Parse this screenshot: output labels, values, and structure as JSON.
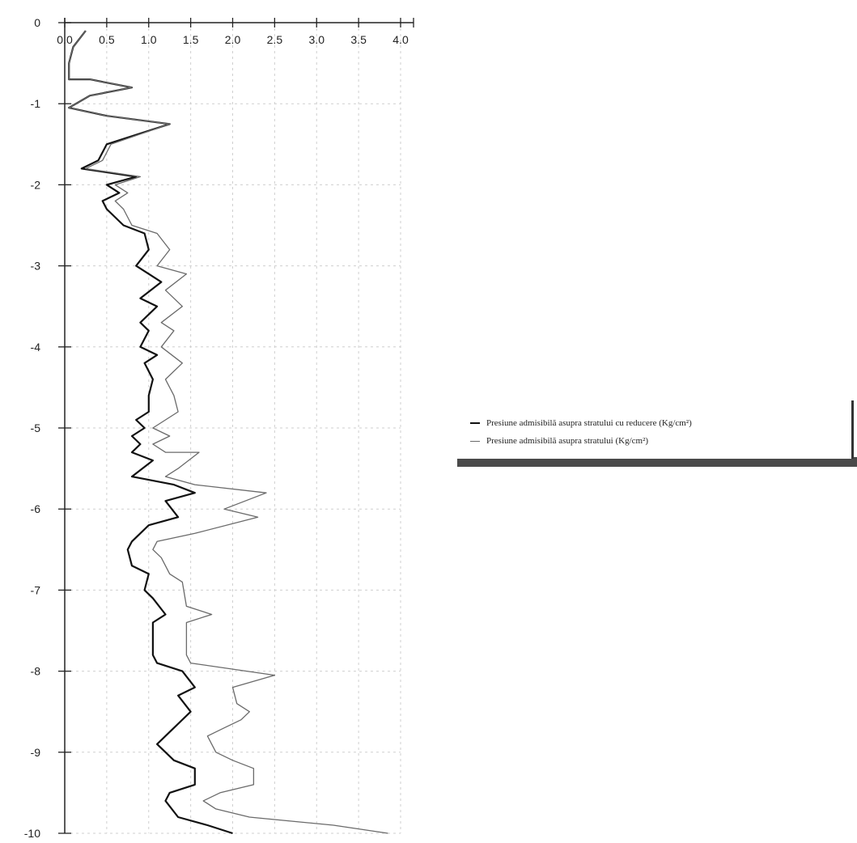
{
  "chart_data": {
    "type": "line",
    "title": "",
    "xlabel": "",
    "ylabel": "",
    "xlim": [
      0,
      4.0
    ],
    "ylim": [
      -10,
      0
    ],
    "x_ticks": [
      0.0,
      0.5,
      1.0,
      1.5,
      2.0,
      2.5,
      3.0,
      3.5,
      4.0
    ],
    "x_tick_labels": [
      "0.0",
      "0.5",
      "1.0",
      "1.5",
      "2.0",
      "2.5",
      "3.0",
      "3.5",
      "4.0"
    ],
    "y_ticks": [
      0,
      -1,
      -2,
      -3,
      -4,
      -5,
      -6,
      -7,
      -8,
      -9,
      -10
    ],
    "y_tick_labels": [
      "0",
      "-1",
      "-2",
      "-3",
      "-4",
      "-5",
      "-6",
      "-7",
      "-8",
      "-9",
      "-10"
    ],
    "grid": true,
    "legend_position": "right",
    "series": [
      {
        "name": "Presiune admisibilă asupra stratului cu reducere (Kg/cm²)",
        "color": "#111111",
        "stroke": 2.2,
        "points": [
          [
            0.25,
            -0.1
          ],
          [
            0.1,
            -0.3
          ],
          [
            0.05,
            -0.5
          ],
          [
            0.05,
            -0.7
          ],
          [
            0.3,
            -0.7
          ],
          [
            0.8,
            -0.8
          ],
          [
            0.3,
            -0.9
          ],
          [
            0.05,
            -1.05
          ],
          [
            0.5,
            -1.15
          ],
          [
            1.25,
            -1.25
          ],
          [
            0.5,
            -1.5
          ],
          [
            0.4,
            -1.7
          ],
          [
            0.2,
            -1.8
          ],
          [
            0.85,
            -1.9
          ],
          [
            0.5,
            -2.0
          ],
          [
            0.65,
            -2.1
          ],
          [
            0.45,
            -2.2
          ],
          [
            0.5,
            -2.3
          ],
          [
            0.7,
            -2.5
          ],
          [
            0.95,
            -2.6
          ],
          [
            1.0,
            -2.8
          ],
          [
            0.85,
            -3.0
          ],
          [
            1.0,
            -3.1
          ],
          [
            1.15,
            -3.2
          ],
          [
            0.9,
            -3.4
          ],
          [
            1.1,
            -3.5
          ],
          [
            0.9,
            -3.7
          ],
          [
            1.0,
            -3.8
          ],
          [
            0.9,
            -4.0
          ],
          [
            1.1,
            -4.1
          ],
          [
            0.95,
            -4.2
          ],
          [
            1.05,
            -4.4
          ],
          [
            1.0,
            -4.6
          ],
          [
            1.0,
            -4.8
          ],
          [
            0.85,
            -4.9
          ],
          [
            0.95,
            -5.0
          ],
          [
            0.8,
            -5.1
          ],
          [
            0.9,
            -5.2
          ],
          [
            0.8,
            -5.3
          ],
          [
            1.05,
            -5.4
          ],
          [
            0.8,
            -5.6
          ],
          [
            1.3,
            -5.7
          ],
          [
            1.55,
            -5.8
          ],
          [
            1.2,
            -5.9
          ],
          [
            1.35,
            -6.1
          ],
          [
            1.0,
            -6.2
          ],
          [
            0.8,
            -6.4
          ],
          [
            0.75,
            -6.5
          ],
          [
            0.8,
            -6.7
          ],
          [
            1.0,
            -6.8
          ],
          [
            0.95,
            -7.0
          ],
          [
            1.05,
            -7.1
          ],
          [
            1.2,
            -7.3
          ],
          [
            1.05,
            -7.4
          ],
          [
            1.05,
            -7.6
          ],
          [
            1.05,
            -7.8
          ],
          [
            1.1,
            -7.9
          ],
          [
            1.4,
            -8.0
          ],
          [
            1.55,
            -8.2
          ],
          [
            1.35,
            -8.3
          ],
          [
            1.5,
            -8.5
          ],
          [
            1.3,
            -8.7
          ],
          [
            1.1,
            -8.9
          ],
          [
            1.3,
            -9.1
          ],
          [
            1.55,
            -9.2
          ],
          [
            1.55,
            -9.4
          ],
          [
            1.25,
            -9.5
          ],
          [
            1.2,
            -9.6
          ],
          [
            1.35,
            -9.8
          ],
          [
            1.7,
            -9.9
          ],
          [
            2.0,
            -10.0
          ]
        ]
      },
      {
        "name": "Presiune admisibilă asupra stratului (Kg/cm²)",
        "color": "#6a6a6a",
        "stroke": 1.3,
        "points": [
          [
            0.25,
            -0.1
          ],
          [
            0.1,
            -0.3
          ],
          [
            0.05,
            -0.5
          ],
          [
            0.05,
            -0.7
          ],
          [
            0.3,
            -0.7
          ],
          [
            0.8,
            -0.8
          ],
          [
            0.3,
            -0.9
          ],
          [
            0.05,
            -1.05
          ],
          [
            0.5,
            -1.15
          ],
          [
            1.25,
            -1.25
          ],
          [
            0.55,
            -1.5
          ],
          [
            0.45,
            -1.7
          ],
          [
            0.25,
            -1.8
          ],
          [
            0.9,
            -1.9
          ],
          [
            0.6,
            -2.0
          ],
          [
            0.75,
            -2.1
          ],
          [
            0.6,
            -2.2
          ],
          [
            0.7,
            -2.3
          ],
          [
            0.8,
            -2.5
          ],
          [
            1.1,
            -2.6
          ],
          [
            1.25,
            -2.8
          ],
          [
            1.1,
            -3.0
          ],
          [
            1.45,
            -3.1
          ],
          [
            1.2,
            -3.3
          ],
          [
            1.4,
            -3.5
          ],
          [
            1.15,
            -3.7
          ],
          [
            1.3,
            -3.8
          ],
          [
            1.15,
            -4.0
          ],
          [
            1.4,
            -4.2
          ],
          [
            1.2,
            -4.4
          ],
          [
            1.3,
            -4.6
          ],
          [
            1.35,
            -4.8
          ],
          [
            1.05,
            -5.0
          ],
          [
            1.25,
            -5.1
          ],
          [
            1.05,
            -5.2
          ],
          [
            1.2,
            -5.3
          ],
          [
            1.6,
            -5.3
          ],
          [
            1.35,
            -5.5
          ],
          [
            1.2,
            -5.6
          ],
          [
            1.55,
            -5.7
          ],
          [
            2.4,
            -5.8
          ],
          [
            1.9,
            -6.0
          ],
          [
            2.3,
            -6.1
          ],
          [
            1.55,
            -6.3
          ],
          [
            1.1,
            -6.4
          ],
          [
            1.05,
            -6.5
          ],
          [
            1.15,
            -6.6
          ],
          [
            1.25,
            -6.8
          ],
          [
            1.4,
            -6.9
          ],
          [
            1.45,
            -7.2
          ],
          [
            1.75,
            -7.3
          ],
          [
            1.45,
            -7.4
          ],
          [
            1.45,
            -7.6
          ],
          [
            1.45,
            -7.8
          ],
          [
            1.5,
            -7.9
          ],
          [
            2.5,
            -8.05
          ],
          [
            2.0,
            -8.2
          ],
          [
            2.05,
            -8.4
          ],
          [
            2.2,
            -8.5
          ],
          [
            2.1,
            -8.6
          ],
          [
            1.9,
            -8.7
          ],
          [
            1.7,
            -8.8
          ],
          [
            1.8,
            -9.0
          ],
          [
            2.0,
            -9.1
          ],
          [
            2.25,
            -9.2
          ],
          [
            2.25,
            -9.4
          ],
          [
            1.85,
            -9.5
          ],
          [
            1.65,
            -9.6
          ],
          [
            1.8,
            -9.7
          ],
          [
            2.2,
            -9.8
          ],
          [
            3.2,
            -9.9
          ],
          [
            3.85,
            -10.0
          ]
        ]
      }
    ]
  }
}
